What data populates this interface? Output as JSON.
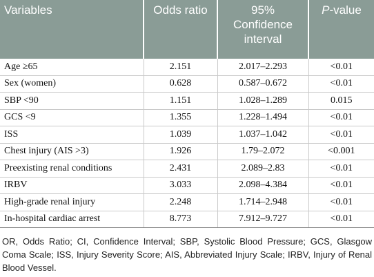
{
  "table": {
    "header": [
      "Variables",
      "Odds ratio",
      "95% Confidence interval",
      {
        "italic": "P",
        "text": "-value"
      }
    ],
    "rows": [
      [
        "Age ≥65",
        "2.151",
        "2.017–2.293",
        "<0.01"
      ],
      [
        "Sex (women)",
        "0.628",
        "0.587–0.672",
        "<0.01"
      ],
      [
        "SBP <90",
        "1.151",
        "1.028–1.289",
        "0.015"
      ],
      [
        "GCS <9",
        "1.355",
        "1.228–1.494",
        "<0.01"
      ],
      [
        "ISS",
        "1.039",
        "1.037–1.042",
        "<0.01"
      ],
      [
        "Chest injury (AIS >3)",
        "1.926",
        "1.79–2.072",
        "<0.001"
      ],
      [
        "Preexisting renal conditions",
        "2.431",
        "2.089–2.83",
        "<0.01"
      ],
      [
        "IRBV",
        "3.033",
        "2.098–4.384",
        "<0.01"
      ],
      [
        "High-grade renal injury",
        "2.248",
        "1.714–2.948",
        "<0.01"
      ],
      [
        "In-hospital cardiac arrest",
        "8.773",
        "7.912–9.727",
        "<0.01"
      ]
    ]
  },
  "footnote": "OR, Odds Ratio; CI, Confidence Interval; SBP, Systolic Blood Pressure; GCS, Glasgow Coma Scale; ISS, Injury Severity Score; AIS, Abbreviated Injury Scale; IRBV, Injury of Renal Blood Vessel."
}
